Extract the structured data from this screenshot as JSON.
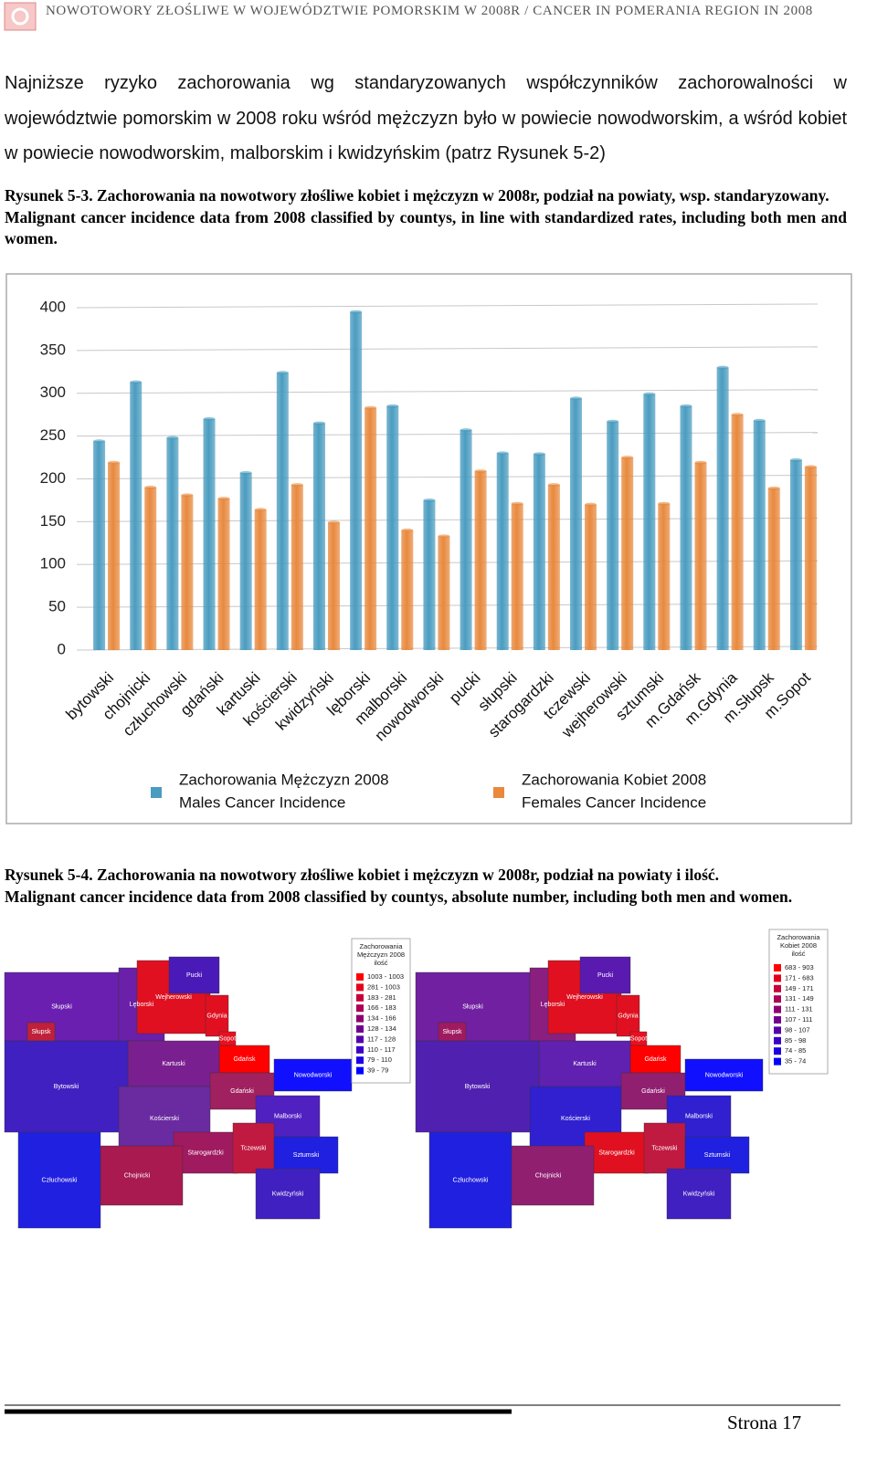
{
  "header": {
    "title": "NOWOTOWORY ZŁOŚLIWE W WOJEWÓDZTWIE POMORSKIM W 2008R / CANCER IN  POMERANIA REGION IN 2008"
  },
  "paragraph": "Najniższe ryzyko zachorowania wg standaryzowanych współczynników zachorowalności w województwie pomorskim w 2008 roku wśród mężczyzn było w powiecie nowodworskim, a wśród kobiet w powiecie nowodworskim, malborskim i kwidzyńskim (patrz Rysunek 5-2)",
  "figure1": {
    "caption_pl": "Rysunek 5-3. Zachorowania na nowotwory złośliwe kobiet  i mężczyzn w 2008r, podział na powiaty, wsp. standaryzowany.",
    "caption_en": "Malignant cancer incidence data from 2008 classified by countys, in line with standardized rates, including both men and women."
  },
  "chart_data": {
    "type": "bar",
    "categories": [
      "bytowski",
      "chojnicki",
      "człuchowski",
      "gdański",
      "kartuski",
      "kościerski",
      "kwidzyński",
      "lęborski",
      "malborski",
      "nowodworski",
      "pucki",
      "słupski",
      "starogardzki",
      "tczewski",
      "wejherowski",
      "sztumski",
      "m.Gdańsk",
      "m.Gdynia",
      "m.Słupsk",
      "m.Sopot"
    ],
    "series": [
      {
        "name": "Zachorowania Mężczyzn 2008",
        "name_en": "Males Cancer Incidence",
        "color": "#4a9cc0",
        "values": [
          244,
          313,
          248,
          270,
          207,
          324,
          265,
          395,
          285,
          175,
          257,
          230,
          229,
          294,
          267,
          299,
          285,
          330,
          268,
          222
        ]
      },
      {
        "name": "Zachorowania Kobiet 2008",
        "name_en": "Females Cancer Incidence",
        "color": "#e8893e",
        "values": [
          219,
          190,
          181,
          177,
          164,
          193,
          149,
          283,
          140,
          133,
          209,
          171,
          193,
          170,
          225,
          171,
          219,
          275,
          189,
          214
        ]
      }
    ],
    "ylim": [
      0,
      400
    ],
    "yticks": [
      0,
      50,
      100,
      150,
      200,
      250,
      300,
      350,
      400
    ],
    "grid": true
  },
  "figure2": {
    "caption_pl": "Rysunek 5-4. Zachorowania na nowotwory złośliwe kobiet  i mężczyzn w 2008r, podział na powiaty i ilość.",
    "caption_en": "Malignant cancer incidence data from 2008 classified by countys, absolute number, including both men and women."
  },
  "regions": [
    "Słupski",
    "Słupsk",
    "Lęborski",
    "Wejherowski",
    "Pucki",
    "Gdynia",
    "Sopot",
    "Gdańsk",
    "Kartuski",
    "Gdański",
    "Nowodworski",
    "Bytowski",
    "Kościerski",
    "Malborski",
    "Starogardzki",
    "Tczewski",
    "Sztumski",
    "Kwidzyński",
    "Chojnicki",
    "Człuchowski"
  ],
  "maps": [
    {
      "legend_title": [
        "Zachorowania",
        "Mężczyzn 2008",
        "ilość"
      ],
      "legend": [
        {
          "label": "1003 - 1003",
          "color": "#ff0000"
        },
        {
          "label": "281 - 1003",
          "color": "#e3001c"
        },
        {
          "label": "183 - 281",
          "color": "#c60039"
        },
        {
          "label": "166 - 183",
          "color": "#aa0055"
        },
        {
          "label": "134 - 166",
          "color": "#8e0071"
        },
        {
          "label": "128 - 134",
          "color": "#71008e"
        },
        {
          "label": "117 - 128",
          "color": "#5500aa"
        },
        {
          "label": "110 - 117",
          "color": "#3900c6"
        },
        {
          "label": "79 - 110",
          "color": "#1c00e3"
        },
        {
          "label": "39 - 79",
          "color": "#0000ff"
        }
      ],
      "region_colors": [
        "#6a1fb0",
        "#c0203a",
        "#6a20a8",
        "#e01020",
        "#4a1ab8",
        "#e01020",
        "#e81020",
        "#ff0000",
        "#7a1f90",
        "#a02060",
        "#1010ff",
        "#4020c0",
        "#6a2aa0",
        "#5020c0",
        "#a01a60",
        "#c01a40",
        "#2020e0",
        "#4020c0",
        "#a81a50",
        "#2020e0"
      ]
    },
    {
      "legend_title": [
        "Zachorowania",
        "Kobiet 2008",
        "ilość"
      ],
      "legend": [
        {
          "label": "683 - 903",
          "color": "#ff0000"
        },
        {
          "label": "171 - 683",
          "color": "#e3001c"
        },
        {
          "label": "149 - 171",
          "color": "#c60039"
        },
        {
          "label": "131 - 149",
          "color": "#aa0055"
        },
        {
          "label": "111 - 131",
          "color": "#8e0071"
        },
        {
          "label": "107 - 111",
          "color": "#71008e"
        },
        {
          "label": "98 - 107",
          "color": "#5500aa"
        },
        {
          "label": "85 - 98",
          "color": "#3900c6"
        },
        {
          "label": "74 - 85",
          "color": "#1c00e3"
        },
        {
          "label": "35 - 74",
          "color": "#0000ff"
        }
      ],
      "region_colors": [
        "#7020a0",
        "#a01a60",
        "#8a1f80",
        "#e01020",
        "#5a1ab0",
        "#e01020",
        "#e81020",
        "#ff0000",
        "#6020b0",
        "#901f70",
        "#1010ff",
        "#5020b0",
        "#3020d0",
        "#3020d0",
        "#e01020",
        "#c01a40",
        "#2020e0",
        "#4020c0",
        "#901f70",
        "#2020e0"
      ]
    }
  ],
  "footer": {
    "page": "Strona 17"
  }
}
